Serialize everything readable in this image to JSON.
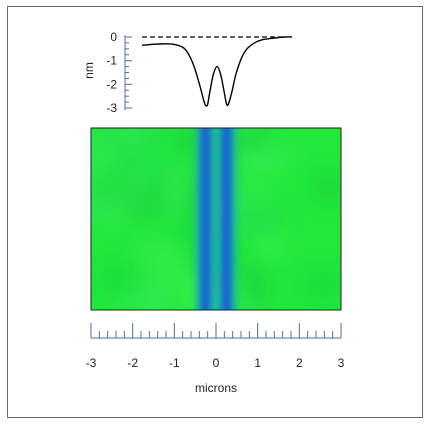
{
  "chart_data": [
    {
      "type": "line",
      "title": "",
      "ylabel": "nm",
      "xlabel": "",
      "xlim": [
        -2,
        2
      ],
      "ylim": [
        -3,
        0
      ],
      "yticks": [
        0,
        -1,
        -2,
        -3
      ],
      "ytick_labels": [
        "0",
        "-1",
        "-2",
        "-3"
      ],
      "reference_line": {
        "y": 0,
        "style": "dashed"
      },
      "series": [
        {
          "x": [
            -2.0,
            -1.6,
            -1.2,
            -0.9,
            -0.75,
            -0.6,
            -0.45,
            -0.35,
            -0.3,
            -0.25,
            -0.2,
            -0.1,
            0.0,
            0.1,
            0.2,
            0.25,
            0.3,
            0.4,
            0.5,
            0.65,
            0.8,
            1.0,
            1.2,
            1.5,
            1.8,
            2.0
          ],
          "y": [
            -0.35,
            -0.3,
            -0.3,
            -0.45,
            -0.75,
            -1.3,
            -2.1,
            -2.7,
            -2.9,
            -2.85,
            -2.4,
            -1.6,
            -1.25,
            -1.6,
            -2.4,
            -2.8,
            -2.85,
            -2.3,
            -1.6,
            -0.9,
            -0.5,
            -0.25,
            -0.12,
            -0.05,
            0.0,
            0.0
          ]
        }
      ],
      "grid": false,
      "legend": "none"
    },
    {
      "type": "heatmap",
      "title": "",
      "xlabel": "microns",
      "xlim": [
        -3,
        3
      ],
      "xticks": [
        -3,
        -2,
        -1,
        0,
        1,
        2,
        3
      ],
      "xtick_labels": [
        "-3",
        "-2",
        "-1",
        "0",
        "1",
        "2",
        "3"
      ],
      "minor_ticks_per_major": 5,
      "colors": {
        "background": "#22e83a",
        "trench_edge": "#1cc0a0",
        "trench_core": "#1658d4"
      },
      "trenches": [
        {
          "center": -0.25,
          "width": 0.28
        },
        {
          "center": 0.25,
          "width": 0.28
        }
      ],
      "legend": "none"
    }
  ]
}
